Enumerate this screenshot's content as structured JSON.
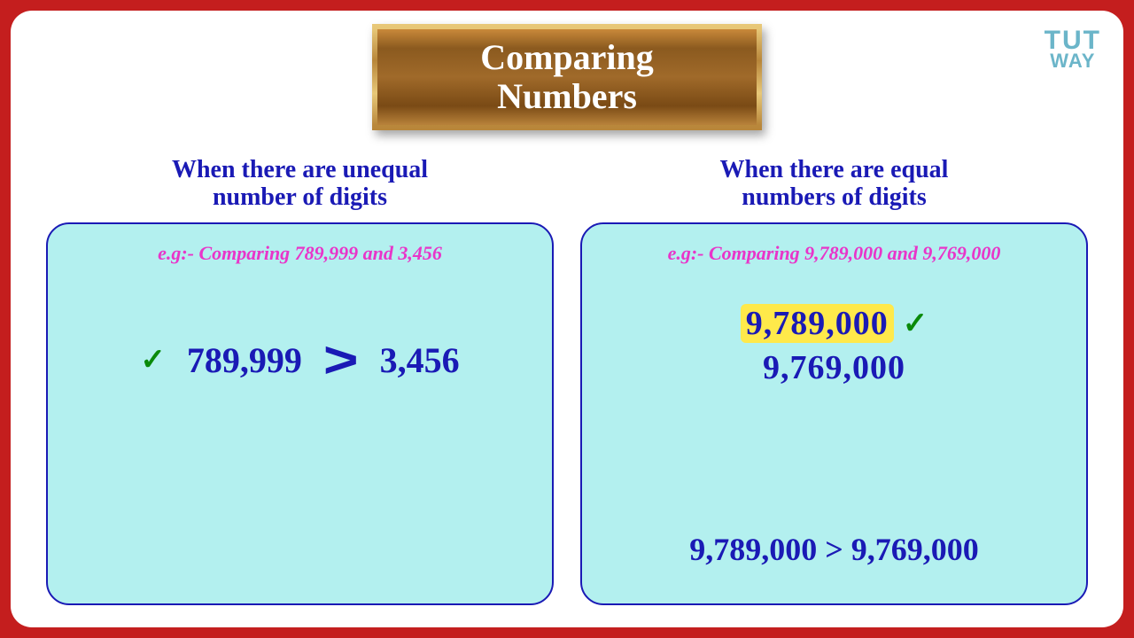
{
  "colors": {
    "outer_border": "#c41e1e",
    "panel_bg": "#b3f0ef",
    "panel_border": "#1a1ab5",
    "heading_text": "#1a1ab5",
    "example_text": "#e835c9",
    "number_text": "#1a1ab5",
    "highlight_bg": "#ffe94a",
    "check_color": "#0a8a0a",
    "title_text": "#ffffff"
  },
  "logo": {
    "line1": "TUT",
    "line2": "WAY"
  },
  "title": {
    "line1": "Comparing",
    "line2": "Numbers"
  },
  "left": {
    "header_l1": "When there are unequal",
    "header_l2": "number of digits",
    "example": "e.g:- Comparing 789,999 and 3,456",
    "num_a": "789,999",
    "op": ">",
    "num_b": "3,456"
  },
  "right": {
    "header_l1": "When there are equal",
    "header_l2": "numbers of digits",
    "example": "e.g:- Comparing 9,789,000 and 9,769,000",
    "num_a": "9,789,000",
    "num_b": "9,769,000",
    "result": "9,789,000  >  9,769,000"
  },
  "icons": {
    "check": "✓"
  }
}
